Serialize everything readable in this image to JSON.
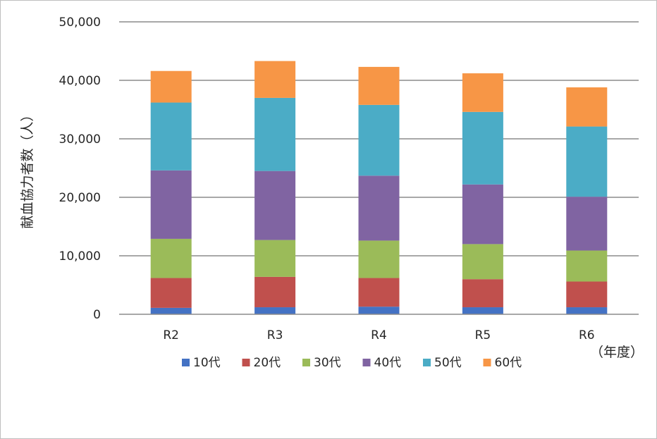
{
  "chart_data": {
    "type": "bar",
    "stacked": true,
    "title": "",
    "xlabel": "（年度）",
    "ylabel": "献血協力者数（人）",
    "categories": [
      "R2",
      "R3",
      "R4",
      "R5",
      "R6"
    ],
    "ylim": [
      0,
      50000
    ],
    "yticks": [
      0,
      10000,
      20000,
      30000,
      40000,
      50000
    ],
    "ytick_labels": [
      "0",
      "10,000",
      "20,000",
      "30,000",
      "40,000",
      "50,000"
    ],
    "grid": true,
    "legend_position": "bottom",
    "series": [
      {
        "name": "10代",
        "color": "#4472C4",
        "values": [
          1100,
          1200,
          1300,
          1200,
          1200
        ]
      },
      {
        "name": "20代",
        "color": "#C0504D",
        "values": [
          5100,
          5200,
          4900,
          4800,
          4400
        ]
      },
      {
        "name": "30代",
        "color": "#9BBB59",
        "values": [
          6700,
          6300,
          6400,
          6000,
          5300
        ]
      },
      {
        "name": "40代",
        "color": "#8064A2",
        "values": [
          11700,
          11800,
          11100,
          10200,
          9200
        ]
      },
      {
        "name": "50代",
        "color": "#4BACC6",
        "values": [
          11600,
          12500,
          12100,
          12400,
          12000
        ]
      },
      {
        "name": "60代",
        "color": "#F79646",
        "values": [
          5400,
          6300,
          6500,
          6600,
          6700
        ]
      }
    ]
  }
}
